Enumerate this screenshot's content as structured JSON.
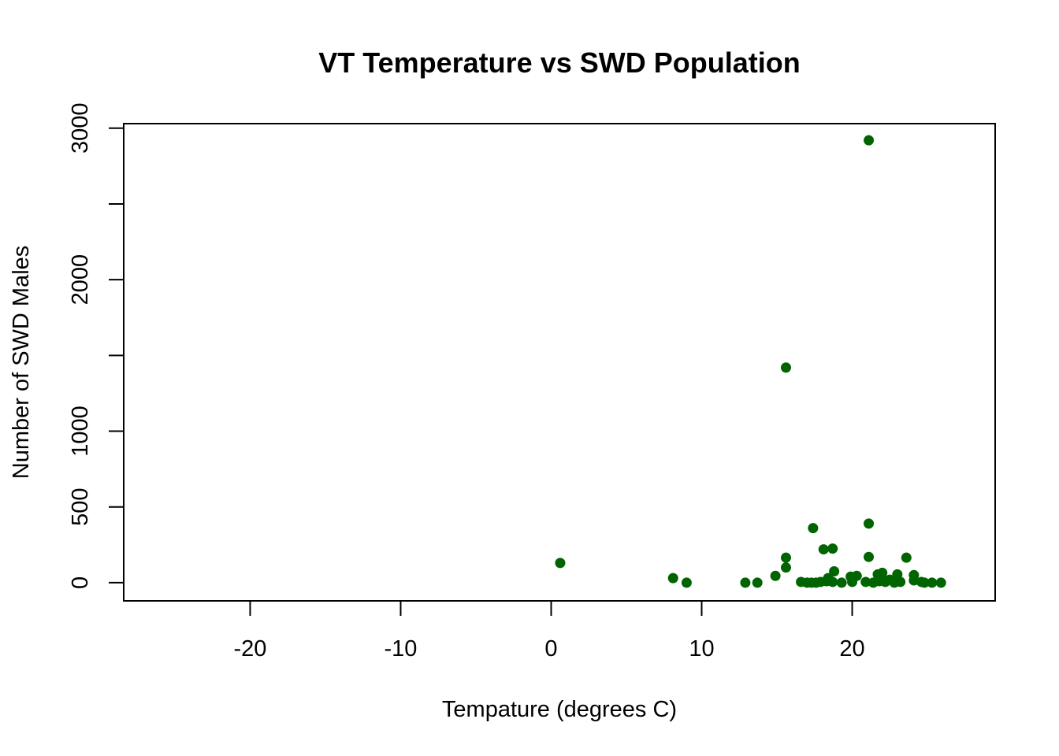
{
  "chart_data": {
    "type": "scatter",
    "title": "VT Temperature vs SWD Population",
    "xlabel": "Tempature (degrees C)",
    "ylabel": "Number of SWD Males",
    "xlim": [
      -28.4,
      29.5
    ],
    "ylim": [
      -120,
      3030
    ],
    "x_ticks": [
      -20,
      -10,
      0,
      10,
      20
    ],
    "x_tick_labels": [
      "-20",
      "-10",
      "0",
      "10",
      "20"
    ],
    "y_ticks": [
      0,
      500,
      1000,
      1500,
      2000,
      2500,
      3000
    ],
    "y_tick_labels": [
      "0",
      "500",
      "1000",
      "",
      "2000",
      "",
      "3000"
    ],
    "grid": false,
    "legend": "none",
    "point_color": "#006400",
    "series": [
      {
        "x": [
          21.1,
          15.6,
          21.1,
          17.4,
          18.1,
          18.7,
          21.1,
          15.6,
          23.6,
          0.6,
          15.6,
          18.8,
          22.0,
          8.1,
          14.9,
          23.0,
          24.1,
          21.7,
          20.3,
          19.9,
          18.4,
          9.0,
          12.9,
          13.7,
          16.6,
          17.0,
          17.3,
          17.6,
          17.9,
          18.3,
          18.7,
          19.3,
          20.0,
          20.9,
          21.4,
          21.8,
          22.2,
          22.5,
          22.8,
          23.2,
          24.1,
          24.6,
          24.8,
          25.3,
          25.9
        ],
        "y": [
          2920,
          1420,
          390,
          360,
          220,
          225,
          170,
          165,
          165,
          130,
          100,
          75,
          65,
          30,
          45,
          55,
          50,
          55,
          45,
          40,
          30,
          0,
          0,
          0,
          5,
          0,
          0,
          0,
          5,
          10,
          5,
          0,
          5,
          5,
          0,
          10,
          5,
          20,
          0,
          5,
          15,
          5,
          0,
          0,
          0
        ]
      }
    ]
  }
}
